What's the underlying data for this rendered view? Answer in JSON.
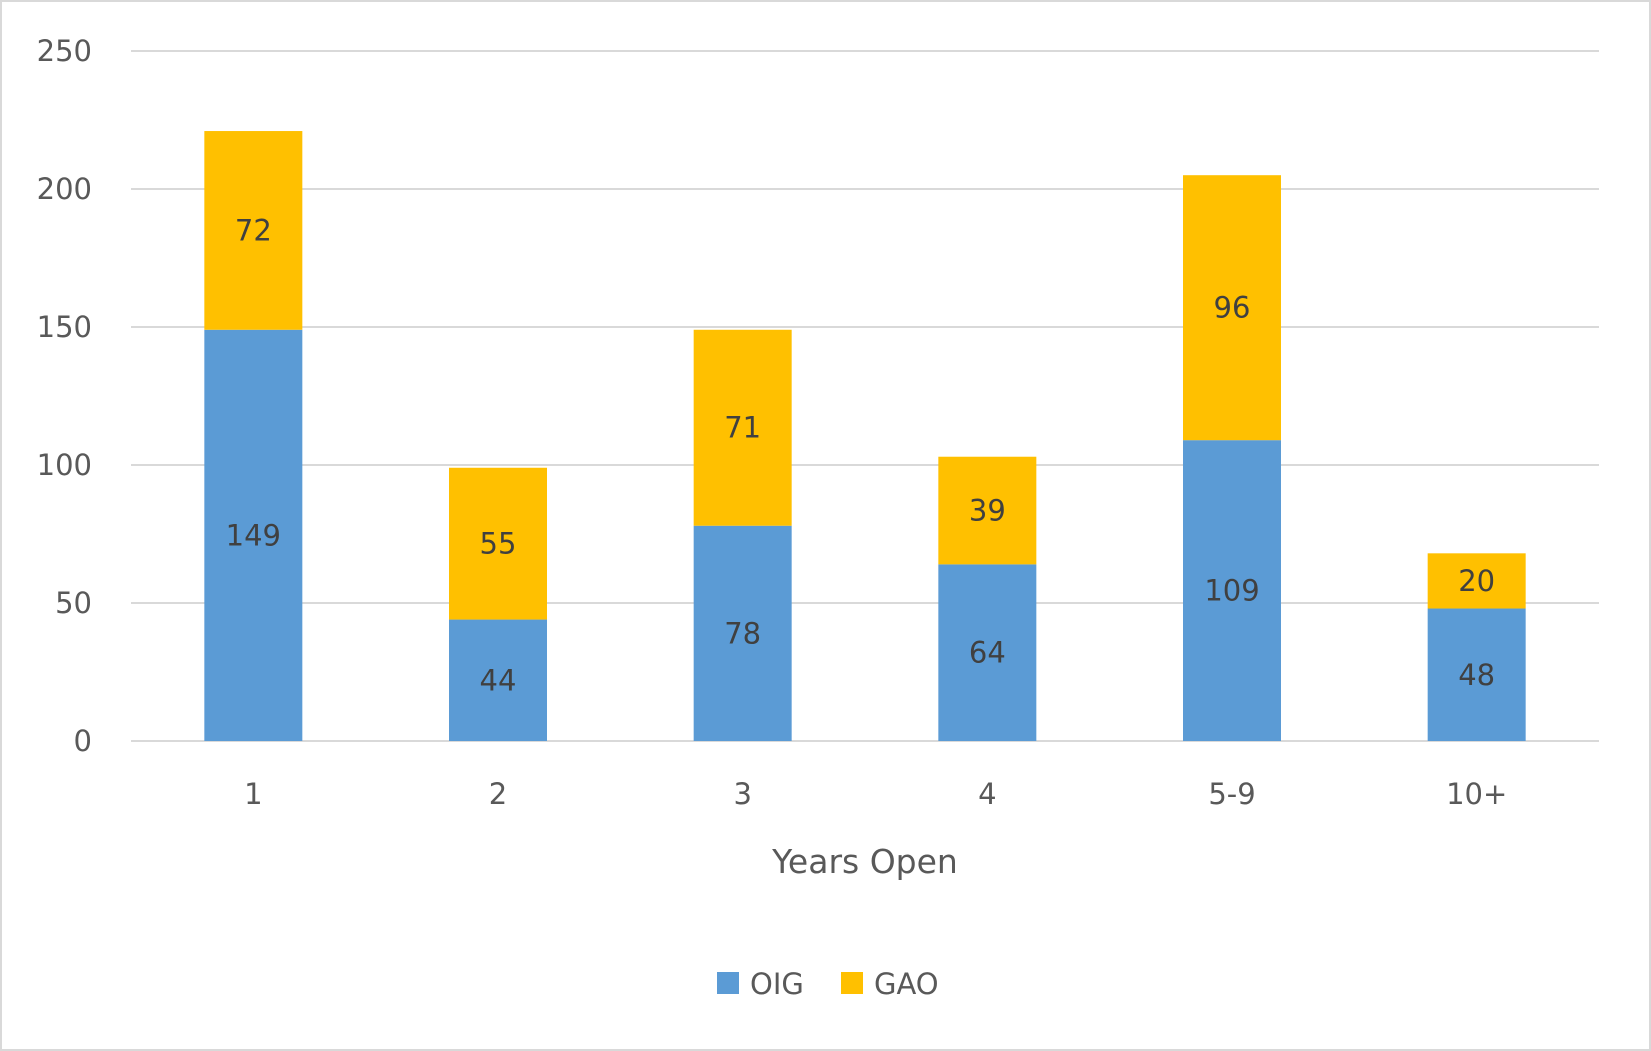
{
  "chart_data": {
    "type": "bar",
    "stacked": true,
    "title": "",
    "xlabel": "Years Open",
    "ylabel": "",
    "categories": [
      "1",
      "2",
      "3",
      "4",
      "5-9",
      "10+"
    ],
    "series": [
      {
        "name": "OIG",
        "color": "#5b9bd5",
        "values": [
          149,
          44,
          78,
          64,
          109,
          48
        ]
      },
      {
        "name": "GAO",
        "color": "#ffc000",
        "values": [
          72,
          55,
          71,
          39,
          96,
          20
        ]
      }
    ],
    "ylim": [
      0,
      250
    ],
    "yticks": [
      0,
      50,
      100,
      150,
      200,
      250
    ],
    "grid": true,
    "legend_position": "bottom",
    "data_labels": true
  }
}
